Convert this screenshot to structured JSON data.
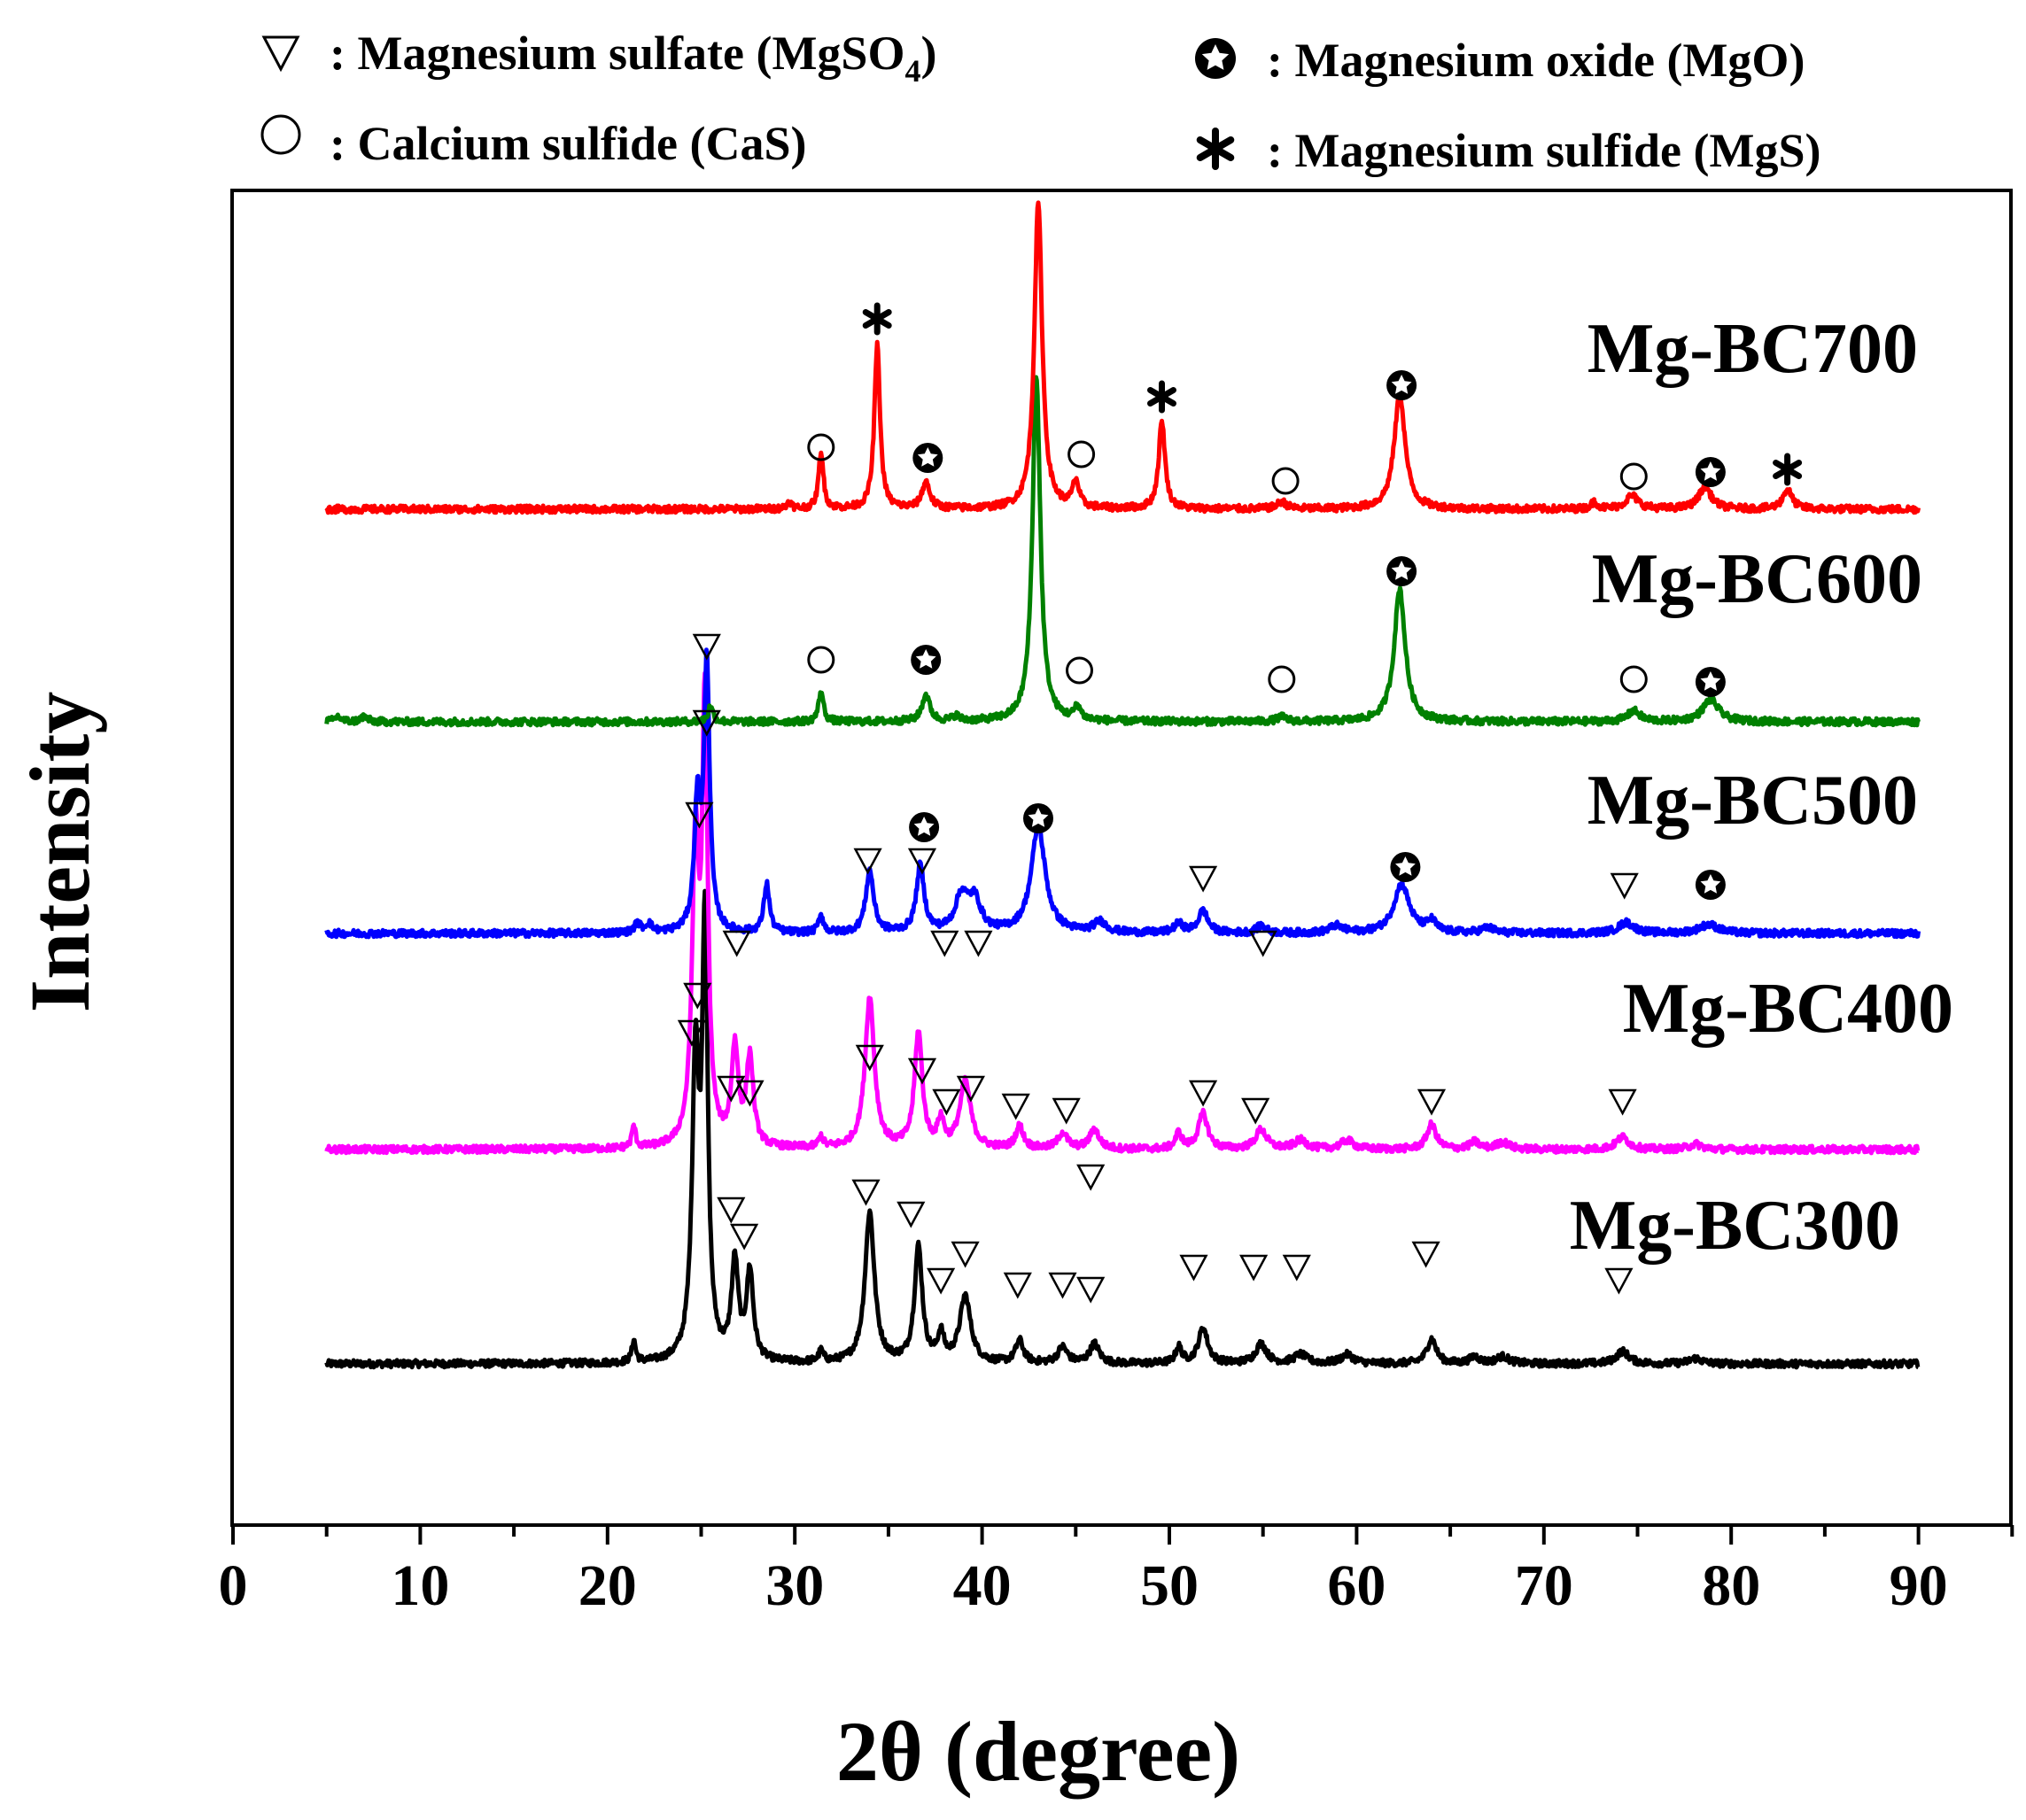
{
  "chart_data": {
    "type": "line",
    "title": "",
    "xlabel": "2θ (degree)",
    "ylabel": "Intensity",
    "xlim": [
      0,
      95
    ],
    "x_ticks": [
      "0",
      "10",
      "20",
      "30",
      "40",
      "50",
      "60",
      "70",
      "80",
      "90"
    ],
    "x_data_range": [
      5,
      90
    ],
    "grid": false,
    "legend_position": "top",
    "legend": [
      {
        "marker": "triangle",
        "text": ": Magnesium sulfate (MgSO",
        "sub": "4",
        "tail": ")"
      },
      {
        "marker": "circle",
        "text": ": Calcium sulfide (CaS)"
      },
      {
        "marker": "star",
        "text": ": Magnesium oxide (MgO)"
      },
      {
        "marker": "asterisk",
        "text": ": Magnesium sulfide (MgS)"
      }
    ],
    "series": [
      {
        "name": "Mg-BC300",
        "color": "#000000",
        "baseline_level": 0,
        "noise": 4,
        "peaks": [
          [
            21.4,
            25,
            0.12
          ],
          [
            24.7,
            330,
            0.22
          ],
          [
            25.2,
            480,
            0.18
          ],
          [
            26.8,
            110,
            0.22
          ],
          [
            27.6,
            100,
            0.22
          ],
          [
            31.4,
            12,
            0.15
          ],
          [
            34.0,
            170,
            0.3
          ],
          [
            36.6,
            130,
            0.25
          ],
          [
            37.8,
            30,
            0.2
          ],
          [
            39.1,
            75,
            0.35
          ],
          [
            42.0,
            25,
            0.25
          ],
          [
            44.3,
            18,
            0.3
          ],
          [
            46.0,
            22,
            0.3
          ],
          [
            50.5,
            18,
            0.2
          ],
          [
            51.8,
            40,
            0.3
          ],
          [
            54.9,
            22,
            0.35
          ],
          [
            57.0,
            10,
            0.4
          ],
          [
            59.5,
            10,
            0.4
          ],
          [
            64.0,
            28,
            0.3
          ],
          [
            66.3,
            8,
            0.3
          ],
          [
            67.8,
            8,
            0.4
          ],
          [
            74.2,
            14,
            0.4
          ],
          [
            78.1,
            6,
            0.4
          ]
        ],
        "markers": [
          [
            24.5,
            "triangle",
            375
          ],
          [
            26.6,
            "triangle",
            175
          ],
          [
            27.3,
            "triangle",
            145
          ],
          [
            33.8,
            "triangle",
            195
          ],
          [
            36.2,
            "triangle",
            170
          ],
          [
            37.8,
            "triangle",
            95
          ],
          [
            39.1,
            "triangle",
            125
          ],
          [
            41.9,
            "triangle",
            90
          ],
          [
            44.3,
            "triangle",
            90
          ],
          [
            45.8,
            "triangle",
            85
          ],
          [
            51.3,
            "triangle",
            110
          ],
          [
            54.5,
            "triangle",
            110
          ],
          [
            56.8,
            "triangle",
            110
          ],
          [
            63.7,
            "triangle",
            125
          ],
          [
            74.0,
            "triangle",
            95
          ]
        ]
      },
      {
        "name": "Mg-BC400",
        "color": "#ff00ff",
        "baseline_level": 1,
        "noise": 4,
        "peaks": [
          [
            21.4,
            25,
            0.12
          ],
          [
            24.7,
            330,
            0.22
          ],
          [
            25.2,
            480,
            0.18
          ],
          [
            26.8,
            110,
            0.22
          ],
          [
            27.6,
            100,
            0.22
          ],
          [
            31.4,
            12,
            0.15
          ],
          [
            34.0,
            170,
            0.3
          ],
          [
            36.6,
            130,
            0.25
          ],
          [
            37.8,
            30,
            0.2
          ],
          [
            39.1,
            75,
            0.35
          ],
          [
            42.0,
            25,
            0.25
          ],
          [
            44.3,
            18,
            0.3
          ],
          [
            46.0,
            22,
            0.3
          ],
          [
            50.5,
            18,
            0.2
          ],
          [
            51.8,
            40,
            0.3
          ],
          [
            54.9,
            22,
            0.35
          ],
          [
            57.0,
            10,
            0.4
          ],
          [
            59.5,
            10,
            0.4
          ],
          [
            64.0,
            28,
            0.3
          ],
          [
            66.3,
            8,
            0.3
          ],
          [
            67.8,
            8,
            0.4
          ],
          [
            74.2,
            14,
            0.4
          ],
          [
            78.1,
            6,
            0.4
          ]
        ],
        "markers": [
          [
            24.8,
            "triangle",
            175
          ],
          [
            26.6,
            "triangle",
            70
          ],
          [
            27.6,
            "triangle",
            65
          ],
          [
            34.0,
            "triangle",
            105
          ],
          [
            36.8,
            "triangle",
            90
          ],
          [
            38.1,
            "triangle",
            55
          ],
          [
            39.4,
            "triangle",
            70
          ],
          [
            41.8,
            "triangle",
            50
          ],
          [
            44.5,
            "triangle",
            45
          ],
          [
            45.8,
            "triangle",
            -30
          ],
          [
            51.8,
            "triangle",
            65
          ],
          [
            54.6,
            "triangle",
            45
          ],
          [
            64.0,
            "triangle",
            55
          ],
          [
            74.2,
            "triangle",
            55
          ]
        ]
      },
      {
        "name": "Mg-BC500",
        "color": "#0000ff",
        "baseline_level": 2,
        "noise": 4,
        "peaks": [
          [
            21.6,
            10,
            0.2
          ],
          [
            22.2,
            10,
            0.2
          ],
          [
            24.8,
            140,
            0.2
          ],
          [
            25.3,
            300,
            0.18
          ],
          [
            28.5,
            55,
            0.18
          ],
          [
            31.4,
            20,
            0.15
          ],
          [
            34.0,
            70,
            0.25
          ],
          [
            36.7,
            75,
            0.25
          ],
          [
            38.9,
            40,
            0.4
          ],
          [
            39.6,
            35,
            0.4
          ],
          [
            43.0,
            120,
            0.45
          ],
          [
            46.3,
            12,
            0.4
          ],
          [
            50.5,
            10,
            0.3
          ],
          [
            51.8,
            25,
            0.3
          ],
          [
            54.9,
            8,
            0.3
          ],
          [
            58.9,
            8,
            0.4
          ],
          [
            62.4,
            55,
            0.5
          ],
          [
            64.0,
            12,
            0.3
          ],
          [
            67.0,
            6,
            0.4
          ],
          [
            74.4,
            12,
            0.5
          ],
          [
            78.8,
            10,
            0.6
          ]
        ],
        "markers": [
          [
            24.9,
            "triangle",
            135
          ],
          [
            25.3,
            "triangle",
            325
          ],
          [
            26.9,
            "triangle",
            -10
          ],
          [
            33.9,
            "triangle",
            83
          ],
          [
            36.8,
            "triangle",
            83
          ],
          [
            38.0,
            "triangle",
            -10
          ],
          [
            39.8,
            "triangle",
            -10
          ],
          [
            36.9,
            "star",
            120
          ],
          [
            43.0,
            "star",
            130
          ],
          [
            51.8,
            "triangle",
            63
          ],
          [
            55.0,
            "triangle",
            -10
          ],
          [
            62.6,
            "star",
            75
          ],
          [
            74.3,
            "triangle",
            55
          ],
          [
            78.9,
            "star",
            55
          ]
        ]
      },
      {
        "name": "Mg-BC600",
        "color": "#008000",
        "baseline_level": 3,
        "noise": 4,
        "peaks": [
          [
            5.6,
            6,
            0.2
          ],
          [
            7.0,
            6,
            0.2
          ],
          [
            25.5,
            18,
            0.15
          ],
          [
            31.4,
            35,
            0.15
          ],
          [
            37.0,
            30,
            0.25
          ],
          [
            38.6,
            6,
            0.2
          ],
          [
            42.9,
            390,
            0.25
          ],
          [
            45.1,
            15,
            0.2
          ],
          [
            56.0,
            5,
            0.3
          ],
          [
            62.3,
            150,
            0.35
          ],
          [
            74.8,
            12,
            0.4
          ],
          [
            78.9,
            25,
            0.5
          ]
        ],
        "markers": [
          [
            25.3,
            "triangle",
            0
          ],
          [
            31.4,
            "circle",
            70
          ],
          [
            37.0,
            "star",
            70
          ],
          [
            45.2,
            "circle",
            58
          ],
          [
            56.0,
            "circle",
            48
          ],
          [
            62.4,
            "star",
            170
          ],
          [
            74.8,
            "circle",
            48
          ],
          [
            78.9,
            "star",
            45
          ]
        ]
      },
      {
        "name": "Mg-BC700",
        "color": "#ff0000",
        "baseline_level": 4,
        "noise": 4,
        "peaks": [
          [
            29.7,
            8,
            0.15
          ],
          [
            31.4,
            65,
            0.15
          ],
          [
            34.4,
            185,
            0.18
          ],
          [
            37.0,
            30,
            0.25
          ],
          [
            43.0,
            345,
            0.25
          ],
          [
            45.0,
            30,
            0.2
          ],
          [
            49.6,
            100,
            0.2
          ],
          [
            56.0,
            8,
            0.3
          ],
          [
            62.3,
            130,
            0.35
          ],
          [
            72.7,
            8,
            0.2
          ],
          [
            74.7,
            15,
            0.4
          ],
          [
            78.6,
            25,
            0.4
          ],
          [
            83.0,
            22,
            0.3
          ]
        ],
        "markers": [
          [
            31.4,
            "circle",
            70
          ],
          [
            34.4,
            "asterisk",
            215
          ],
          [
            37.1,
            "star",
            58
          ],
          [
            45.3,
            "circle",
            62
          ],
          [
            49.6,
            "asterisk",
            127
          ],
          [
            56.2,
            "circle",
            32
          ],
          [
            62.4,
            "star",
            140
          ],
          [
            74.8,
            "circle",
            37
          ],
          [
            78.9,
            "star",
            42
          ],
          [
            83.0,
            "asterisk",
            45
          ]
        ]
      }
    ]
  }
}
